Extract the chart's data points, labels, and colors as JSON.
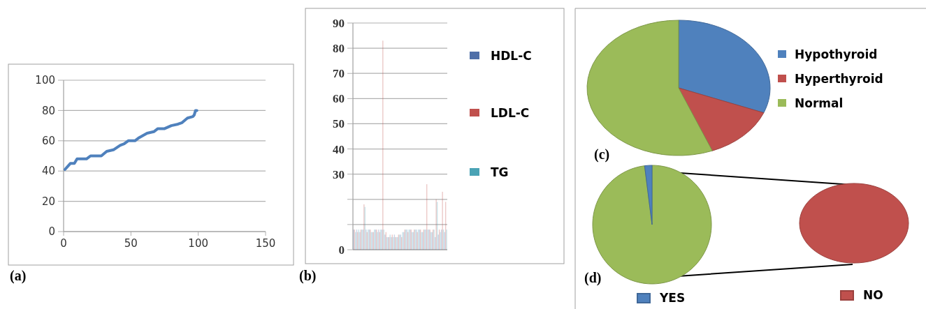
{
  "chart_data": [
    {
      "type": "line",
      "x": [
        1,
        5,
        8,
        10,
        17,
        20,
        28,
        32,
        37,
        42,
        45,
        48,
        53,
        56,
        62,
        67,
        70,
        75,
        80,
        85,
        88,
        92,
        96,
        97,
        98,
        99
      ],
      "values": [
        41,
        45,
        45,
        48,
        48,
        50,
        50,
        53,
        54,
        57,
        58,
        60,
        60,
        62,
        65,
        66,
        68,
        68,
        70,
        71,
        72,
        75,
        76,
        77,
        80,
        80
      ],
      "color": "#4f81bd",
      "xlim": [
        0,
        150
      ],
      "xticks": [
        0,
        50,
        100,
        150
      ],
      "ylim": [
        0,
        100
      ],
      "yticks": [
        0,
        20,
        40,
        60,
        80,
        100
      ],
      "grid": "y",
      "annotations": [
        "(a)"
      ]
    },
    {
      "type": "bar",
      "categories": [
        null,
        null,
        null,
        null,
        null,
        null,
        null,
        null,
        null,
        null,
        null,
        null,
        null,
        null,
        null,
        null,
        null,
        null,
        null,
        null,
        null,
        null,
        null,
        null,
        null,
        null,
        null,
        null,
        null,
        null
      ],
      "series": [
        {
          "name": "HDL-C",
          "color": "#4f6fa8",
          "values": [
            8,
            8,
            7,
            8,
            8,
            8,
            7,
            8,
            8,
            8,
            6,
            5,
            5,
            6,
            5,
            6,
            7,
            8,
            8,
            7,
            8,
            8,
            7,
            8,
            8,
            7,
            5,
            6,
            8,
            7
          ]
        },
        {
          "name": "LDL-C",
          "color": "#c0504d",
          "values": [
            8,
            7,
            8,
            18,
            7,
            8,
            7,
            8,
            7,
            83,
            7,
            5,
            6,
            5,
            6,
            5,
            8,
            7,
            8,
            8,
            7,
            8,
            8,
            26,
            8,
            8,
            20,
            8,
            23,
            19
          ]
        },
        {
          "name": "TG",
          "color": "#4aa3b5",
          "values": [
            7,
            8,
            8,
            17,
            8,
            7,
            8,
            7,
            8,
            8,
            5,
            6,
            5,
            5,
            6,
            7,
            8,
            8,
            7,
            8,
            8,
            7,
            8,
            8,
            7,
            8,
            19,
            7,
            8,
            8
          ]
        }
      ],
      "ylim": [
        0,
        90
      ],
      "yticks": [
        0,
        {
          "value": 10,
          "label": null
        },
        {
          "value": 20,
          "label": null
        },
        30,
        40,
        50,
        60,
        70,
        80,
        90
      ],
      "grid": "y",
      "legend": "right",
      "annotations": [
        "(b)"
      ]
    },
    {
      "type": "pie",
      "categories": [
        "Hypothyroid",
        "Hyperthyroid",
        "Normal"
      ],
      "values": [
        31,
        13,
        56
      ],
      "colors": [
        "#4f81bd",
        "#c0504d",
        "#9bbb59"
      ],
      "legend": "right",
      "annotations": [
        "(c)"
      ]
    },
    {
      "type": "pie",
      "categories": [
        null,
        "YES"
      ],
      "values": [
        98,
        2
      ],
      "colors": [
        "#9bbb59",
        "#4f81bd"
      ],
      "legend": "bottom",
      "annotations": [
        "(d)"
      ]
    },
    {
      "type": "pie",
      "categories": [
        "NO"
      ],
      "values": [
        100
      ],
      "colors": [
        "#c0504d"
      ],
      "legend": "bottom"
    }
  ]
}
